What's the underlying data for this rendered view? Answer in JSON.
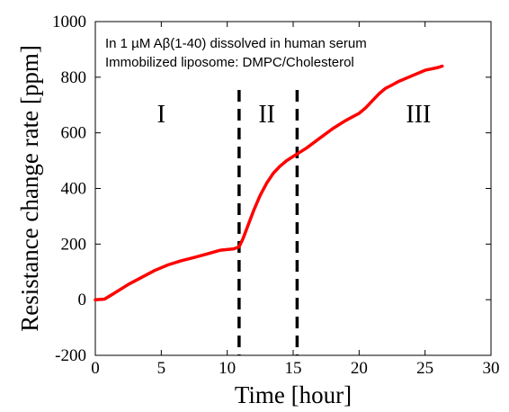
{
  "chart_data": {
    "type": "line",
    "xlabel": "Time [hour]",
    "ylabel": "Resistance change rate [ppm]",
    "xlim": [
      0,
      30
    ],
    "ylim": [
      -200,
      1000
    ],
    "xticks": [
      0,
      5,
      10,
      15,
      20,
      25,
      30
    ],
    "yticks": [
      -200,
      0,
      200,
      400,
      600,
      800,
      1000
    ],
    "grid": false,
    "annotations": [
      "In 1 µM Aβ(1-40) dissolved in human serum",
      "Immobilized liposome: DMPC/Cholesterol"
    ],
    "phases": [
      {
        "label": "I",
        "x": 5
      },
      {
        "label": "II",
        "x": 13
      },
      {
        "label": "III",
        "x": 24.5
      }
    ],
    "boundaries": [
      10.9,
      15.3
    ],
    "series": [
      {
        "color": "#ff0000",
        "x": [
          0,
          0.7,
          1.5,
          2.5,
          3.5,
          4.5,
          5.5,
          6.5,
          7.5,
          8.5,
          9.5,
          10.5,
          10.9,
          11.2,
          11.6,
          12,
          12.5,
          13,
          13.5,
          14,
          14.5,
          15,
          15.5,
          16,
          17,
          18,
          19,
          20,
          20.5,
          21,
          21.5,
          22,
          22.5,
          23,
          24,
          25,
          26,
          26.3
        ],
        "y": [
          0,
          2,
          25,
          55,
          80,
          105,
          125,
          140,
          152,
          165,
          178,
          183,
          190,
          220,
          270,
          320,
          375,
          420,
          455,
          480,
          500,
          515,
          530,
          545,
          580,
          615,
          645,
          670,
          690,
          715,
          740,
          760,
          772,
          785,
          805,
          825,
          835,
          840
        ]
      }
    ]
  }
}
